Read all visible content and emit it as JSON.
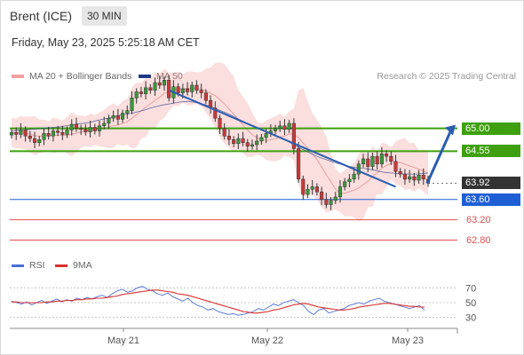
{
  "header": {
    "instrument": "Brent (ICE)",
    "timeframe": "30 MIN",
    "datetime": "Friday, May 23, 2025 5:25:18 AM CET",
    "research": "Research © 2025 Trading Central"
  },
  "legend": {
    "ma20_label": "MA 20 + Bollinger Bands",
    "ma50_label": "MA 50",
    "rsi_label": "RSI",
    "ma9_label": "9MA"
  },
  "colors": {
    "bollinger": "#f4a0a0",
    "ma50": "#1f3a8a",
    "support_resistance": "#3fa00f",
    "target": "#e05050",
    "current": "#333333",
    "pivot": "#1f5fd6",
    "rsi": "#4a6fd6",
    "rsi_ma": "#d83030",
    "arrow": "#2a5db0"
  },
  "chart_data": [
    {
      "type": "candlestick",
      "title": "Brent (ICE)",
      "x_ticks": [
        "May 21",
        "May 22",
        "May 23"
      ],
      "ylim": [
        62.6,
        65.85
      ],
      "levels": [
        {
          "value": 65.0,
          "label": "65.00",
          "kind": "resistance"
        },
        {
          "value": 64.55,
          "label": "64.55",
          "kind": "resistance"
        },
        {
          "value": 63.92,
          "label": "63.92",
          "kind": "current"
        },
        {
          "value": 63.6,
          "label": "63.60",
          "kind": "pivot"
        },
        {
          "value": 63.2,
          "label": "63.20",
          "kind": "target"
        },
        {
          "value": 62.8,
          "label": "62.80",
          "kind": "target"
        }
      ],
      "close_series": [
        64.92,
        64.88,
        64.97,
        64.85,
        64.8,
        64.72,
        64.78,
        64.9,
        64.85,
        64.95,
        64.92,
        64.88,
        64.97,
        65.08,
        65.0,
        64.98,
        64.93,
        65.02,
        64.95,
        65.05,
        65.1,
        65.2,
        65.25,
        65.18,
        65.3,
        65.35,
        65.6,
        65.72,
        65.68,
        65.8,
        65.75,
        65.9,
        65.85,
        65.95,
        65.6,
        65.82,
        65.7,
        65.78,
        65.72,
        65.85,
        65.75,
        65.7,
        65.55,
        65.4,
        65.2,
        65.0,
        64.85,
        64.78,
        64.7,
        64.8,
        64.72,
        64.65,
        64.68,
        64.75,
        64.82,
        64.9,
        64.95,
        65.0,
        65.05,
        64.98,
        65.1,
        64.6,
        64.0,
        63.7,
        63.8,
        63.85,
        63.75,
        63.6,
        63.5,
        63.58,
        63.65,
        63.85,
        63.95,
        64.0,
        64.1,
        64.3,
        64.4,
        64.25,
        64.45,
        64.3,
        64.5,
        64.45,
        64.35,
        64.15,
        64.1,
        64.0,
        64.05,
        63.98,
        64.08,
        64.0,
        63.92
      ],
      "ma50": [
        64.95,
        64.96,
        64.97,
        64.98,
        64.99,
        65.0,
        65.01,
        65.02,
        65.03,
        65.05,
        65.07,
        65.09,
        65.1,
        65.12,
        65.15,
        65.18,
        65.2,
        65.23,
        65.26,
        65.28,
        65.3,
        65.33,
        65.36,
        65.4,
        65.43,
        65.46,
        65.48,
        65.5,
        65.52,
        65.53,
        65.52,
        65.5,
        65.47,
        65.43,
        65.38,
        65.33,
        65.28,
        65.22,
        65.16,
        65.1,
        65.05,
        65.0,
        64.95,
        64.9,
        64.85,
        64.8,
        64.73,
        64.66,
        64.6,
        64.54,
        64.48,
        64.43,
        64.39,
        64.35,
        64.31,
        64.28,
        64.25,
        64.23,
        64.22,
        64.2,
        64.18,
        64.15,
        64.13,
        64.12,
        64.11,
        64.1,
        64.1,
        64.1,
        64.11,
        64.12
      ],
      "trendline": {
        "start": 65.75,
        "end": 63.85
      },
      "arrow_target": 65.0
    },
    {
      "type": "line",
      "title": "RSI",
      "y_ticks": [
        70,
        50,
        30
      ],
      "ylim": [
        20,
        80
      ],
      "series": [
        {
          "name": "RSI",
          "values": [
            52,
            50,
            48,
            51,
            47,
            50,
            53,
            49,
            52,
            55,
            51,
            54,
            52,
            56,
            54,
            57,
            55,
            58,
            60,
            57,
            62,
            66,
            68,
            64,
            66,
            70,
            72,
            68,
            66,
            62,
            60,
            63,
            58,
            55,
            52,
            56,
            50,
            46,
            44,
            40,
            42,
            38,
            36,
            34,
            35,
            33,
            34,
            36,
            38,
            42,
            40,
            44,
            48,
            46,
            50,
            52,
            54,
            50,
            46,
            38,
            34,
            40,
            42,
            36,
            38,
            40,
            42,
            46,
            48,
            50,
            48,
            52,
            54,
            56,
            52,
            50,
            48,
            46,
            44,
            42,
            44,
            46,
            40
          ]
        },
        {
          "name": "9MA",
          "values": [
            51,
            51,
            50,
            50,
            50,
            50,
            50,
            51,
            51,
            52,
            52,
            53,
            53,
            54,
            54,
            55,
            55,
            56,
            56,
            57,
            58,
            59,
            61,
            62,
            63,
            64,
            65,
            66,
            67,
            67,
            66,
            65,
            64,
            62,
            61,
            60,
            58,
            56,
            54,
            52,
            50,
            48,
            46,
            44,
            42,
            40,
            38,
            37,
            36,
            36,
            37,
            38,
            40,
            41,
            43,
            45,
            47,
            48,
            49,
            48,
            46,
            44,
            43,
            42,
            41,
            40,
            40,
            41,
            42,
            44,
            45,
            46,
            47,
            48,
            49,
            49,
            48,
            47,
            46,
            45,
            45,
            44,
            44
          ]
        }
      ]
    }
  ]
}
